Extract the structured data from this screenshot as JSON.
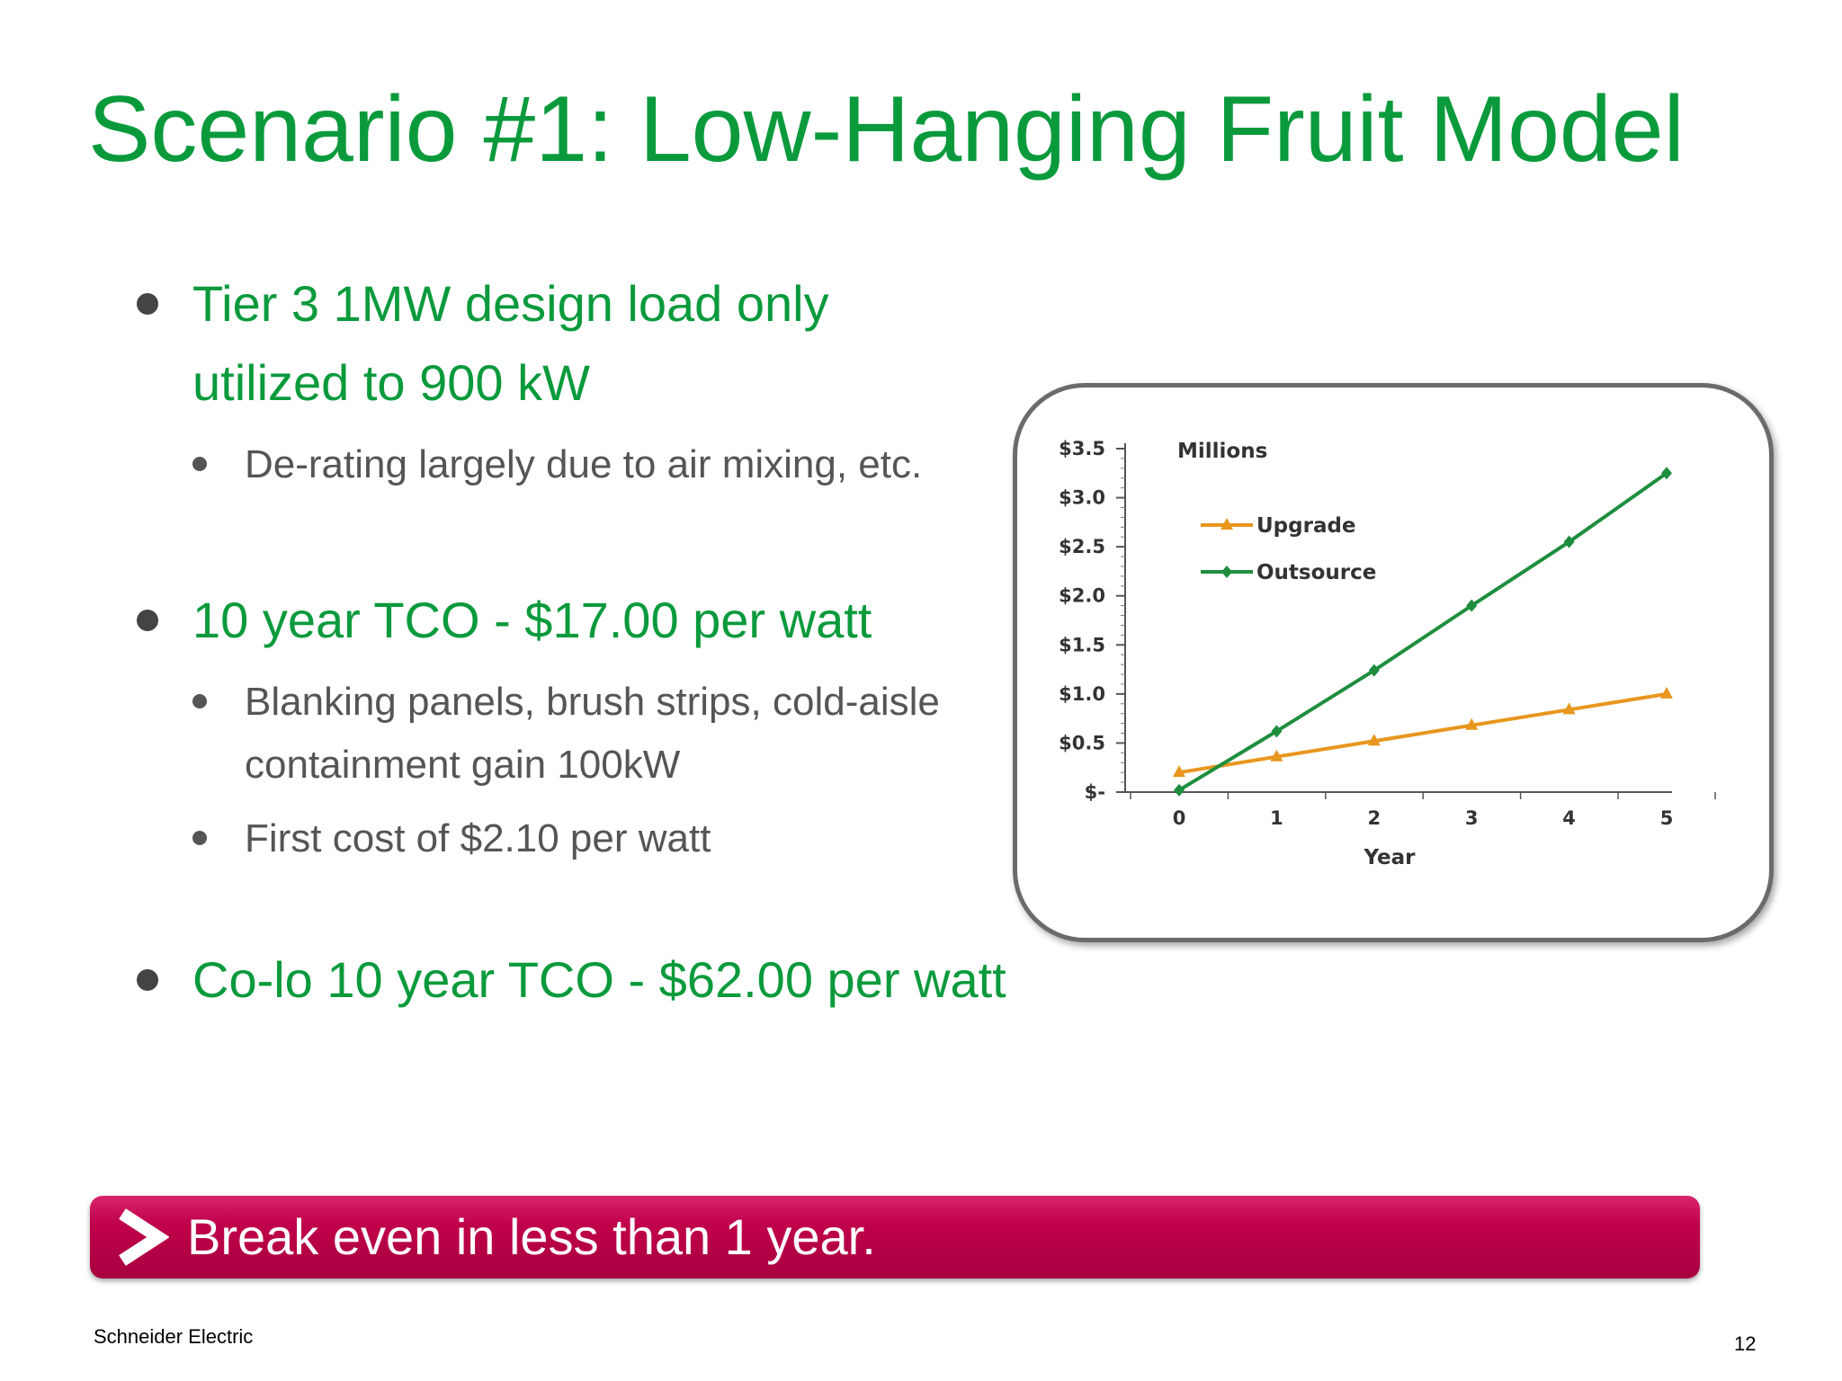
{
  "title": "Scenario #1:  Low-Hanging Fruit Model",
  "bullets": {
    "b1_line1": "Tier 3 1MW design load only",
    "b1_line2": "utilized to 900 kW",
    "b1_sub1": "De-rating largely due to air mixing, etc.",
    "b2": "10 year TCO - $17.00 per watt",
    "b2_sub1_line1": "Blanking panels, brush strips, cold-aisle",
    "b2_sub1_line2": "containment gain 100kW",
    "b2_sub2": "First cost of $2.10 per watt",
    "b3": "Co-lo 10 year TCO - $62.00 per watt"
  },
  "chart_data": {
    "type": "line",
    "title": "Millions",
    "xlabel": "Year",
    "ylabel": "",
    "x": [
      0,
      1,
      2,
      3,
      4,
      5
    ],
    "x_ticks": [
      "0",
      "1",
      "2",
      "3",
      "4",
      "5"
    ],
    "y_ticks": [
      "$-",
      "$0.5",
      "$1.0",
      "$1.5",
      "$2.0",
      "$2.5",
      "$3.0",
      "$3.5"
    ],
    "ylim": [
      0,
      3.5
    ],
    "legend_position": "top-left",
    "series": [
      {
        "name": "Upgrade",
        "color": "#e8961e",
        "marker": "triangle",
        "values": [
          0.2,
          0.36,
          0.52,
          0.68,
          0.84,
          1.0
        ]
      },
      {
        "name": "Outsource",
        "color": "#1e8e3e",
        "marker": "diamond",
        "values": [
          0.02,
          0.62,
          1.24,
          1.9,
          2.55,
          3.25
        ]
      }
    ]
  },
  "banner": {
    "text": "Break even in less than 1 year."
  },
  "footer": {
    "company": "Schneider Electric",
    "page": "12"
  },
  "colors": {
    "title_green": "#0a9a3c",
    "banner_magenta": "#c0004a"
  },
  "icons": {
    "banner_arrow": "chevron-right-icon"
  }
}
